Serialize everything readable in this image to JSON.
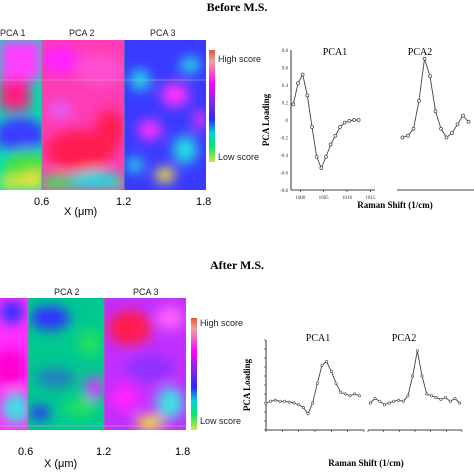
{
  "before": {
    "title": "Before M.S.",
    "map": {
      "panel_labels": [
        "PCA 1",
        "PCA 2",
        "PCA 3"
      ],
      "x_ticks": [
        "0.6",
        "1.2",
        "1.8"
      ],
      "x_axis_label": "X (μm)",
      "legend_high": "High score",
      "legend_low": "Low score"
    },
    "loading_plot": {
      "y_axis_label": "PCA Loading",
      "x_axis_label": "Raman Shift (1/cm)",
      "series_labels": [
        "PCA1",
        "PCA2"
      ],
      "x_ticks": [
        "1000",
        "1005",
        "1010",
        "1015"
      ],
      "y_ticks": [
        "0.8",
        "0.6",
        "0.4",
        "0.2",
        "0",
        "-0.2",
        "-0.4",
        "-0.6",
        "-0.8"
      ]
    }
  },
  "after": {
    "title": "After M.S.",
    "map": {
      "panel_labels": [
        "PCA 2",
        "PCA 3"
      ],
      "x_ticks": [
        "0.6",
        "1.2",
        "1.8"
      ],
      "x_axis_label": "X (μm)",
      "legend_high": "High score",
      "legend_low": "Low score"
    },
    "loading_plot": {
      "y_axis_label": "PCA Loading",
      "x_axis_label": "Raman Shift (1/cm)",
      "series_labels": [
        "PCA1",
        "PCA2"
      ]
    }
  },
  "chart_data": [
    {
      "type": "line",
      "name": "before-pca-loading",
      "xlabel": "Raman Shift (1/cm)",
      "ylabel": "PCA Loading",
      "ylim": [
        -0.8,
        0.8
      ],
      "series": [
        {
          "name": "PCA1",
          "x": [
            998.5,
            999.5,
            1000.5,
            1001.5,
            1002.5,
            1003.5,
            1004.5,
            1005.5,
            1006.5,
            1007.5,
            1008.5,
            1009.5,
            1010.5,
            1011.5,
            1012.5
          ],
          "y": [
            0.18,
            0.42,
            0.52,
            0.28,
            -0.08,
            -0.42,
            -0.55,
            -0.42,
            -0.28,
            -0.18,
            -0.08,
            -0.03,
            -0.01,
            0.0,
            0.0
          ]
        },
        {
          "name": "PCA2",
          "x": [
            1018,
            1019,
            1020,
            1021,
            1022,
            1023,
            1024,
            1025,
            1026,
            1027,
            1028,
            1029,
            1030
          ],
          "y": [
            -0.2,
            -0.18,
            -0.1,
            0.22,
            0.7,
            0.5,
            0.1,
            -0.1,
            -0.2,
            -0.15,
            -0.05,
            0.05,
            -0.02
          ]
        }
      ]
    },
    {
      "type": "line",
      "name": "after-pca-loading",
      "xlabel": "Raman Shift (1/cm)",
      "ylabel": "PCA Loading",
      "series": [
        {
          "name": "PCA1",
          "x": [
            0,
            1,
            2,
            3,
            4,
            5,
            6,
            7,
            8,
            9,
            10,
            11,
            12,
            13,
            14,
            15,
            16,
            17,
            18,
            19,
            20
          ],
          "y": [
            0.1,
            0.12,
            0.13,
            0.12,
            0.12,
            0.11,
            0.1,
            0.08,
            0.05,
            -0.02,
            0.1,
            0.32,
            0.52,
            0.56,
            0.45,
            0.32,
            0.22,
            0.2,
            0.18,
            0.2,
            0.18
          ]
        },
        {
          "name": "PCA2",
          "x": [
            22,
            23,
            24,
            25,
            26,
            27,
            28,
            29,
            30,
            31,
            32,
            33,
            34,
            35,
            36,
            37,
            38,
            39,
            40,
            41
          ],
          "y": [
            0.1,
            0.15,
            0.12,
            0.08,
            0.1,
            0.12,
            0.13,
            0.12,
            0.18,
            0.4,
            0.68,
            0.4,
            0.2,
            0.18,
            0.16,
            0.14,
            0.16,
            0.12,
            0.15,
            0.1
          ]
        }
      ]
    }
  ]
}
